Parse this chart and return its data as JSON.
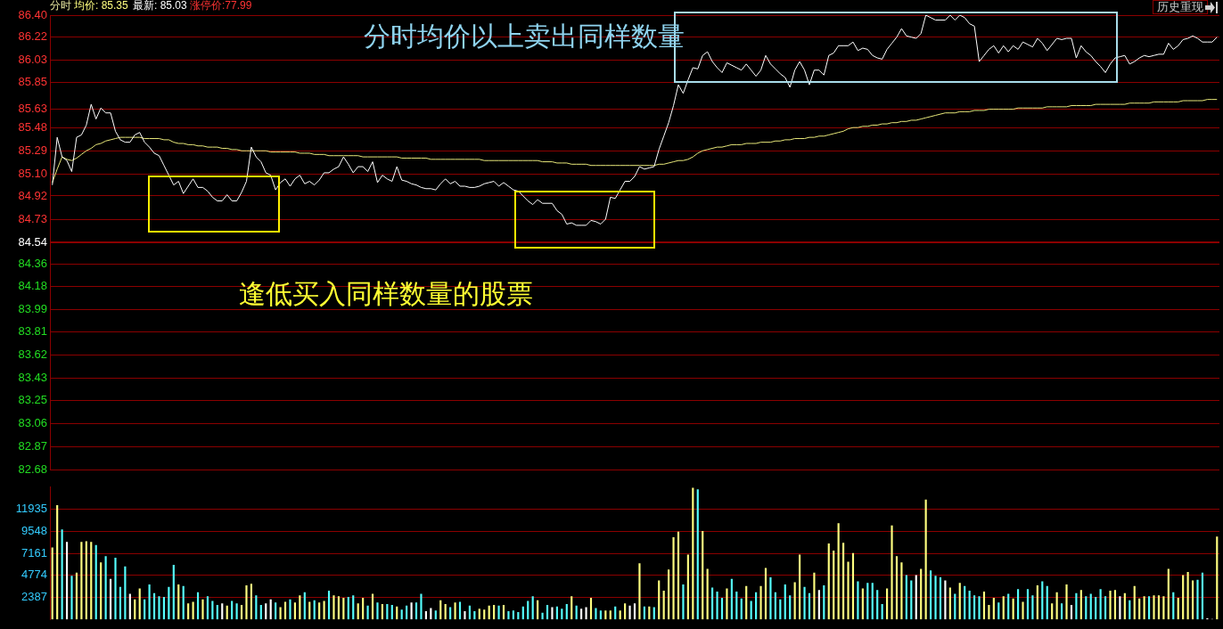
{
  "chart_data": [
    {
      "type": "line",
      "annotations": [
        "分时",
        "均价: 85.35",
        "最新: 85.03",
        "涨停价:77.99",
        "分时均价以上卖出同样数量",
        "逢低买入同样数量的股票",
        "历史重现"
      ],
      "categories": [
        null,
        null,
        null,
        null,
        null,
        null,
        null,
        null,
        null,
        null,
        null,
        null,
        null,
        null,
        null,
        null,
        null,
        null,
        null,
        null,
        null,
        null,
        null,
        null,
        null,
        null,
        null,
        null,
        null,
        null,
        null,
        null,
        null,
        null,
        null,
        null,
        null,
        null,
        null,
        null,
        null,
        null,
        null,
        null,
        null,
        null,
        null,
        null,
        null,
        null,
        null,
        null,
        null,
        null,
        null,
        null,
        null,
        null,
        null,
        null,
        null,
        null,
        null,
        null,
        null,
        null,
        null,
        null,
        null,
        null,
        null,
        null,
        null,
        null,
        null,
        null,
        null,
        null,
        null,
        null,
        null,
        null,
        null,
        null,
        null,
        null,
        null,
        null,
        null,
        null,
        null,
        null,
        null,
        null,
        null,
        null,
        null,
        null,
        null,
        null,
        null,
        null,
        null,
        null,
        null,
        null,
        null,
        null,
        null,
        null,
        null,
        null,
        null,
        null,
        null,
        null,
        null,
        null,
        null,
        null,
        null,
        null,
        null,
        null,
        null,
        null,
        null,
        null,
        null,
        null,
        null,
        null,
        null,
        null,
        null,
        null,
        null,
        null,
        null,
        null,
        null,
        null,
        null,
        null,
        null,
        null,
        null,
        null,
        null,
        null,
        null,
        null,
        null,
        null,
        null,
        null,
        null,
        null,
        null,
        null,
        null,
        null,
        null,
        null,
        null,
        null,
        null,
        null,
        null,
        null,
        null,
        null,
        null,
        null,
        null,
        null,
        null,
        null,
        null,
        null,
        null,
        null,
        null,
        null,
        null,
        null,
        null,
        null,
        null,
        null,
        null,
        null,
        null,
        null,
        null,
        null,
        null,
        null,
        null,
        null,
        null,
        null,
        null,
        null,
        null,
        null,
        null,
        null,
        null,
        null,
        null,
        null,
        null,
        null,
        null,
        null,
        null,
        null,
        null,
        null,
        null,
        null,
        null,
        null,
        null,
        null,
        null,
        null,
        null,
        null,
        null,
        null,
        null,
        null,
        null,
        null,
        null,
        null,
        null,
        null,
        null
      ],
      "ylim": [
        82.68,
        86.4
      ],
      "yticks": [
        {
          "value": 86.4,
          "label": "86.40"
        },
        86.22,
        86.03,
        85.85,
        85.63,
        85.48,
        85.29,
        {
          "value": 85.1,
          "label": "85.10"
        },
        84.92,
        84.73,
        84.54,
        84.36,
        84.18,
        83.99,
        83.81,
        83.62,
        83.43,
        83.25,
        83.06,
        82.87,
        82.68
      ],
      "tick_labels": "y",
      "grid": "y",
      "marker": "none",
      "line_style": "solid",
      "ref_lines": [
        {
          "axis": "y",
          "value": 84.54,
          "color": "#8b0000"
        }
      ],
      "series": [
        {
          "color": "#ffffff",
          "values": [
            85.01,
            85.4,
            85.24,
            85.21,
            85.12,
            85.4,
            85.42,
            85.5,
            85.67,
            85.55,
            85.64,
            85.6,
            85.6,
            85.45,
            85.38,
            85.36,
            85.36,
            85.42,
            85.44,
            85.36,
            85.32,
            85.27,
            85.25,
            85.17,
            85.09,
            85.01,
            85.04,
            84.94,
            85.0,
            85.06,
            84.99,
            84.99,
            84.96,
            84.91,
            84.88,
            84.88,
            84.93,
            84.88,
            84.88,
            84.95,
            85.04,
            85.32,
            85.24,
            85.2,
            85.11,
            85.09,
            84.97,
            85.03,
            85.06,
            85.0,
            85.06,
            85.09,
            85.02,
            85.04,
            85.01,
            85.05,
            85.11,
            85.11,
            85.14,
            85.16,
            85.24,
            85.18,
            85.11,
            85.16,
            85.16,
            85.12,
            85.2,
            85.03,
            85.09,
            85.06,
            85.04,
            85.16,
            85.05,
            85.04,
            85.02,
            85.01,
            84.99,
            84.98,
            84.98,
            84.97,
            85.02,
            85.06,
            85.02,
            85.04,
            85.0,
            85.0,
            84.99,
            84.99,
            85.0,
            85.02,
            85.03,
            85.04,
            85.0,
            85.03,
            85.0,
            84.97,
            84.96,
            84.92,
            84.88,
            84.85,
            84.89,
            84.86,
            84.86,
            84.86,
            84.8,
            84.77,
            84.69,
            84.7,
            84.68,
            84.68,
            84.68,
            84.72,
            84.71,
            84.69,
            84.73,
            84.91,
            84.9,
            84.97,
            85.04,
            85.04,
            85.08,
            85.16,
            85.14,
            85.15,
            85.16,
            85.3,
            85.41,
            85.52,
            85.66,
            85.83,
            85.76,
            85.87,
            85.97,
            85.96,
            86.07,
            86.1,
            86.02,
            85.97,
            85.93,
            86.01,
            85.99,
            85.97,
            85.95,
            86.0,
            85.95,
            85.9,
            85.95,
            86.07,
            86.0,
            85.96,
            85.92,
            85.89,
            85.81,
            85.95,
            86.02,
            85.95,
            85.83,
            85.95,
            85.95,
            85.91,
            86.07,
            86.09,
            86.15,
            86.15,
            86.15,
            86.18,
            86.11,
            86.13,
            86.12,
            86.07,
            86.05,
            86.04,
            86.12,
            86.17,
            86.22,
            86.29,
            86.23,
            86.22,
            86.21,
            86.25,
            86.4,
            86.38,
            86.36,
            86.36,
            86.36,
            86.4,
            86.36,
            86.4,
            86.38,
            86.33,
            86.31,
            86.02,
            86.07,
            86.12,
            86.15,
            86.09,
            86.15,
            86.1,
            86.15,
            86.12,
            86.18,
            86.16,
            86.14,
            86.21,
            86.17,
            86.11,
            86.16,
            86.21,
            86.2,
            86.21,
            86.21,
            86.05,
            86.15,
            86.1,
            86.07,
            86.02,
            85.98,
            85.93,
            86.0,
            86.05,
            86.06,
            86.07,
            86.0,
            86.02,
            86.05,
            86.07,
            86.06,
            86.07,
            86.08,
            86.08,
            86.17,
            86.12,
            86.15,
            86.2,
            86.21,
            86.23,
            86.21,
            86.18,
            86.18,
            86.18,
            86.22
          ]
        },
        {
          "color": "#e8e87a",
          "values": [
            85.03,
            85.14,
            85.24,
            85.22,
            85.21,
            85.23,
            85.26,
            85.29,
            85.31,
            85.34,
            85.35,
            85.37,
            85.38,
            85.39,
            85.4,
            85.4,
            85.4,
            85.4,
            85.4,
            85.39,
            85.39,
            85.39,
            85.39,
            85.38,
            85.38,
            85.36,
            85.35,
            85.35,
            85.34,
            85.34,
            85.33,
            85.33,
            85.32,
            85.32,
            85.32,
            85.31,
            85.31,
            85.3,
            85.3,
            85.29,
            85.29,
            85.29,
            85.29,
            85.29,
            85.29,
            85.28,
            85.28,
            85.28,
            85.28,
            85.28,
            85.28,
            85.27,
            85.27,
            85.27,
            85.26,
            85.26,
            85.26,
            85.25,
            85.25,
            85.25,
            85.25,
            85.25,
            85.25,
            85.25,
            85.24,
            85.24,
            85.24,
            85.24,
            85.24,
            85.24,
            85.24,
            85.24,
            85.23,
            85.23,
            85.23,
            85.23,
            85.23,
            85.23,
            85.22,
            85.22,
            85.22,
            85.22,
            85.22,
            85.22,
            85.22,
            85.22,
            85.22,
            85.22,
            85.22,
            85.21,
            85.21,
            85.21,
            85.21,
            85.21,
            85.21,
            85.21,
            85.21,
            85.21,
            85.21,
            85.21,
            85.21,
            85.2,
            85.2,
            85.2,
            85.19,
            85.19,
            85.19,
            85.18,
            85.18,
            85.18,
            85.18,
            85.17,
            85.17,
            85.17,
            85.17,
            85.17,
            85.17,
            85.17,
            85.17,
            85.17,
            85.17,
            85.17,
            85.17,
            85.17,
            85.17,
            85.18,
            85.18,
            85.19,
            85.2,
            85.21,
            85.21,
            85.22,
            85.24,
            85.27,
            85.29,
            85.3,
            85.31,
            85.32,
            85.32,
            85.33,
            85.34,
            85.34,
            85.34,
            85.35,
            85.35,
            85.35,
            85.36,
            85.36,
            85.36,
            85.37,
            85.37,
            85.38,
            85.38,
            85.39,
            85.39,
            85.39,
            85.4,
            85.4,
            85.41,
            85.41,
            85.42,
            85.43,
            85.44,
            85.45,
            85.47,
            85.48,
            85.48,
            85.49,
            85.49,
            85.5,
            85.5,
            85.51,
            85.51,
            85.52,
            85.52,
            85.53,
            85.53,
            85.54,
            85.54,
            85.55,
            85.56,
            85.57,
            85.58,
            85.59,
            85.6,
            85.6,
            85.6,
            85.61,
            85.61,
            85.61,
            85.62,
            85.62,
            85.62,
            85.63,
            85.63,
            85.63,
            85.63,
            85.63,
            85.63,
            85.64,
            85.64,
            85.64,
            85.64,
            85.64,
            85.64,
            85.65,
            85.65,
            85.65,
            85.65,
            85.65,
            85.66,
            85.66,
            85.66,
            85.66,
            85.66,
            85.67,
            85.67,
            85.67,
            85.67,
            85.67,
            85.67,
            85.67,
            85.68,
            85.68,
            85.68,
            85.68,
            85.68,
            85.69,
            85.69,
            85.69,
            85.69,
            85.69,
            85.69,
            85.7,
            85.7,
            85.7,
            85.7,
            85.7,
            85.71,
            85.71,
            85.71
          ]
        }
      ]
    },
    {
      "type": "bar",
      "ylim": [
        0,
        14322
      ],
      "yticks": [
        2387,
        4774,
        7161,
        9548,
        11935
      ],
      "tick_labels": "y",
      "grid": "y",
      "categories": [
        null,
        null,
        null,
        null,
        null,
        null,
        null,
        null,
        null,
        null,
        null,
        null,
        null,
        null,
        null,
        null,
        null,
        null,
        null,
        null,
        null,
        null,
        null,
        null,
        null,
        null,
        null,
        null,
        null,
        null,
        null,
        null,
        null,
        null,
        null,
        null,
        null,
        null,
        null,
        null,
        null,
        null,
        null,
        null,
        null,
        null,
        null,
        null,
        null,
        null,
        null,
        null,
        null,
        null,
        null,
        null,
        null,
        null,
        null,
        null,
        null,
        null,
        null,
        null,
        null,
        null,
        null,
        null,
        null,
        null,
        null,
        null,
        null,
        null,
        null,
        null,
        null,
        null,
        null,
        null,
        null,
        null,
        null,
        null,
        null,
        null,
        null,
        null,
        null,
        null,
        null,
        null,
        null,
        null,
        null,
        null,
        null,
        null,
        null,
        null,
        null,
        null,
        null,
        null,
        null,
        null,
        null,
        null,
        null,
        null,
        null,
        null,
        null,
        null,
        null,
        null,
        null,
        null,
        null,
        null,
        null,
        null,
        null,
        null,
        null,
        null,
        null,
        null,
        null,
        null,
        null,
        null,
        null,
        null,
        null,
        null,
        null,
        null,
        null,
        null,
        null,
        null,
        null,
        null,
        null,
        null,
        null,
        null,
        null,
        null,
        null,
        null,
        null,
        null,
        null,
        null,
        null,
        null,
        null,
        null,
        null,
        null,
        null,
        null,
        null,
        null,
        null,
        null,
        null,
        null,
        null,
        null,
        null,
        null,
        null,
        null,
        null,
        null,
        null,
        null,
        null,
        null,
        null,
        null,
        null,
        null,
        null,
        null,
        null,
        null,
        null,
        null,
        null,
        null,
        null,
        null,
        null,
        null,
        null,
        null,
        null,
        null,
        null,
        null,
        null,
        null,
        null,
        null,
        null,
        null,
        null,
        null,
        null,
        null,
        null,
        null,
        null,
        null,
        null,
        null,
        null,
        null,
        null,
        null,
        null,
        null,
        null,
        null,
        null,
        null,
        null,
        null,
        null,
        null,
        null,
        null,
        null,
        null,
        null,
        null,
        null
      ],
      "values": [
        7750,
        12350,
        9710,
        8350,
        4690,
        5030,
        8350,
        8440,
        8350,
        8010,
        6130,
        6820,
        4350,
        6650,
        3490,
        5710,
        2730,
        2130,
        3320,
        2130,
        3750,
        2810,
        2470,
        2390,
        3490,
        5880,
        3750,
        3580,
        1700,
        1870,
        2900,
        2130,
        2470,
        1960,
        1530,
        1700,
        1450,
        1960,
        1700,
        1530,
        3660,
        3830,
        2560,
        1530,
        1700,
        2130,
        1790,
        1280,
        1870,
        2130,
        1790,
        2560,
        2900,
        1870,
        2050,
        1790,
        1960,
        3070,
        2560,
        2470,
        2300,
        2390,
        2560,
        1700,
        2300,
        1450,
        2730,
        1790,
        1620,
        1620,
        1530,
        1360,
        1020,
        1450,
        1790,
        1790,
        2730,
        850,
        1190,
        940,
        2050,
        1620,
        1280,
        1790,
        1870,
        850,
        1450,
        850,
        1110,
        1020,
        1450,
        1530,
        1450,
        1530,
        850,
        940,
        770,
        1360,
        1960,
        2470,
        2050,
        680,
        1530,
        1280,
        1360,
        1110,
        1620,
        2470,
        1450,
        1110,
        1280,
        2300,
        1190,
        940,
        940,
        940,
        1360,
        940,
        1700,
        1450,
        1700,
        6050,
        1360,
        1360,
        1280,
        4180,
        3070,
        5370,
        8860,
        9460,
        3750,
        6990,
        14230,
        14060,
        9540,
        5450,
        3410,
        2980,
        2300,
        3320,
        4350,
        2980,
        2220,
        3580,
        1960,
        2900,
        3580,
        5540,
        4520,
        2900,
        2130,
        3750,
        2560,
        4000,
        6990,
        3490,
        2810,
        5030,
        3150,
        3660,
        8180,
        7410,
        10390,
        8260,
        6220,
        7160,
        4090,
        3320,
        3920,
        3920,
        3150,
        1620,
        3320,
        10140,
        6820,
        6130,
        4770,
        4180,
        4770,
        5450,
        12950,
        5280,
        4690,
        4520,
        4180,
        3410,
        2730,
        3920,
        3580,
        3070,
        2560,
        2470,
        2980,
        1530,
        2300,
        1790,
        2470,
        2730,
        2220,
        3240,
        1870,
        3240,
        2560,
        3660,
        4090,
        3580,
        1700,
        2900,
        1700,
        3750,
        1530,
        2810,
        3150,
        2470,
        2730,
        2390,
        3240,
        2470,
        3070,
        3150,
        2470,
        2810,
        2050,
        3580,
        2220,
        2470,
        2470,
        2560,
        2560,
        2470,
        5450,
        2900,
        2300,
        4770,
        5110,
        4180,
        4260,
        5030,
        90,
        0,
        8950
      ],
      "colors": [
        "#ffff80",
        "#ffff80",
        "#55ffff",
        "#ffffff",
        "#55ffff",
        "#ffff80",
        "#ffff80",
        "#ffff80",
        "#ffff80",
        "#55ffff",
        "#ffff80",
        "#55ffff",
        "#ffffff",
        "#55ffff",
        "#55ffff",
        "#55ffff",
        "#ffffff",
        "#ffff80",
        "#ffff80",
        "#55ffff",
        "#55ffff",
        "#55ffff",
        "#55ffff",
        "#55ffff",
        "#55ffff",
        "#55ffff",
        "#ffff80",
        "#55ffff",
        "#ffff80",
        "#ffff80",
        "#55ffff",
        "#ffff80",
        "#55ffff",
        "#55ffff",
        "#55ffff",
        "#ffffff",
        "#ffff80",
        "#55ffff",
        "#55ffff",
        "#ffff80",
        "#ffff80",
        "#ffff80",
        "#55ffff",
        "#55ffff",
        "#ffffff",
        "#ffffff",
        "#55ffff",
        "#ffff80",
        "#ffff80",
        "#55ffff",
        "#ffff80",
        "#ffff80",
        "#55ffff",
        "#ffff80",
        "#55ffff",
        "#ffff80",
        "#ffff80",
        "#55ffff",
        "#ffff80",
        "#ffff80",
        "#ffff80",
        "#55ffff",
        "#55ffff",
        "#ffff80",
        "#ffff80",
        "#55ffff",
        "#ffff80",
        "#55ffff",
        "#ffff80",
        "#55ffff",
        "#55ffff",
        "#ffff80",
        "#55ffff",
        "#55ffff",
        "#ffffff",
        "#55ffff",
        "#55ffff",
        "#ffffff",
        "#ffffff",
        "#55ffff",
        "#ffff80",
        "#ffff80",
        "#55ffff",
        "#ffff80",
        "#55ffff",
        "#ffffff",
        "#55ffff",
        "#55ffff",
        "#ffff80",
        "#ffff80",
        "#ffff80",
        "#ffff80",
        "#55ffff",
        "#ffff80",
        "#55ffff",
        "#55ffff",
        "#55ffff",
        "#55ffff",
        "#55ffff",
        "#55ffff",
        "#ffff80",
        "#55ffff",
        "#55ffff",
        "#ffffff",
        "#55ffff",
        "#55ffff",
        "#55ffff",
        "#ffff80",
        "#55ffff",
        "#ffffff",
        "#ffffff",
        "#ffff80",
        "#55ffff",
        "#55ffff",
        "#ffff80",
        "#ffff80",
        "#55ffff",
        "#ffff80",
        "#ffff80",
        "#ffffff",
        "#ffffff",
        "#ffff80",
        "#55ffff",
        "#ffff80",
        "#55ffff",
        "#ffff80",
        "#ffff80",
        "#ffff80",
        "#ffff80",
        "#ffff80",
        "#55ffff",
        "#ffff80",
        "#ffff80",
        "#55ffff",
        "#ffff80",
        "#ffff80",
        "#55ffff",
        "#55ffff",
        "#55ffff",
        "#ffff80",
        "#55ffff",
        "#55ffff",
        "#55ffff",
        "#ffff80",
        "#55ffff",
        "#55ffff",
        "#ffff80",
        "#ffff80",
        "#55ffff",
        "#55ffff",
        "#55ffff",
        "#55ffff",
        "#55ffff",
        "#ffff80",
        "#ffff80",
        "#55ffff",
        "#55ffff",
        "#ffff80",
        "#ffffff",
        "#55ffff",
        "#ffff80",
        "#ffff80",
        "#ffff80",
        "#ffff80",
        "#ffff80",
        "#ffff80",
        "#55ffff",
        "#ffff80",
        "#55ffff",
        "#55ffff",
        "#55ffff",
        "#55ffff",
        "#ffff80",
        "#ffff80",
        "#ffff80",
        "#ffff80",
        "#55ffff",
        "#55ffff",
        "#ffffff",
        "#ffff80",
        "#ffff80",
        "#55ffff",
        "#55ffff",
        "#55ffff",
        "#ffffff",
        "#ffff80",
        "#55ffff",
        "#ffff80",
        "#55ffff",
        "#55ffff",
        "#55ffff",
        "#55ffff",
        "#ffff80",
        "#ffff80",
        "#ffff80",
        "#55ffff",
        "#ffff80",
        "#55ffff",
        "#ffff80",
        "#55ffff",
        "#ffff80",
        "#55ffff",
        "#55ffff",
        "#ffff80",
        "#55ffff",
        "#55ffff",
        "#ffff80",
        "#ffff80",
        "#55ffff",
        "#ffff80",
        "#ffffff",
        "#55ffff",
        "#ffff80",
        "#55ffff",
        "#55ffff",
        "#55ffff",
        "#55ffff",
        "#55ffff",
        "#ffff80",
        "#ffff80",
        "#ffffff",
        "#ffff80",
        "#55ffff",
        "#ffff80",
        "#ffff80",
        "#ffff80",
        "#55ffff",
        "#ffff80",
        "#ffff80",
        "#ffff80",
        "#ffff80",
        "#55ffff",
        "#ffff80",
        "#ffff80",
        "#ffff80",
        "#ffff80",
        "#55ffff",
        "#55ffff",
        "#ffffff",
        "#ffffff",
        "#ffff80"
      ]
    }
  ]
}
